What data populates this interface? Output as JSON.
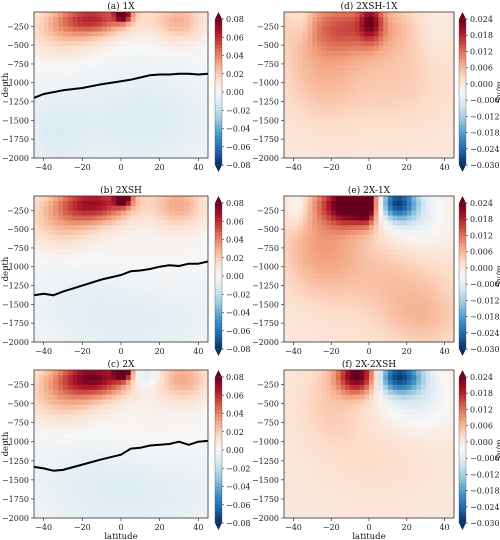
{
  "colors": {
    "cmap": [
      "#053061",
      "#2166ac",
      "#4393c3",
      "#92c5de",
      "#d1e5f0",
      "#f7f7f7",
      "#fddbc7",
      "#f4a582",
      "#d6604d",
      "#b2182b",
      "#67001f"
    ],
    "isoline": "#000000"
  },
  "chart_data": [
    {
      "type": "heatmap",
      "title": "(a) 1X",
      "xlabel": "",
      "ylabel": "depth",
      "xlim": [
        -45,
        45
      ],
      "ylim": [
        -2000,
        -60
      ],
      "xticks": [
        "−40",
        "−20",
        "0",
        "20",
        "40"
      ],
      "yticks": [
        "−250",
        "−500",
        "−750",
        "−1000",
        "−1250",
        "−1500",
        "−1750",
        "−2000"
      ],
      "colorbar": {
        "label": "",
        "range": [
          -0.08,
          0.08
        ],
        "ticks": [
          "0.08",
          "0.06",
          "0.04",
          "0.02",
          "0.00",
          "−0.02",
          "−0.04",
          "−0.06",
          "−0.08"
        ]
      },
      "isoline": {
        "x": [
          -45,
          -40,
          -30,
          -20,
          -10,
          0,
          5,
          10,
          15,
          20,
          25,
          30,
          35,
          40,
          45
        ],
        "y": [
          -1200,
          -1150,
          -1100,
          -1070,
          -1020,
          -980,
          -960,
          -930,
          -900,
          -890,
          -890,
          -880,
          -880,
          -890,
          -880
        ]
      }
    },
    {
      "type": "heatmap",
      "title": "(b) 2XSH",
      "xlabel": "",
      "ylabel": "depth",
      "xlim": [
        -45,
        45
      ],
      "ylim": [
        -2000,
        -60
      ],
      "xticks": [
        "−40",
        "−20",
        "0",
        "20",
        "40"
      ],
      "yticks": [
        "−250",
        "−500",
        "−750",
        "−1000",
        "−1250",
        "−1500",
        "−1750",
        "−2000"
      ],
      "colorbar": {
        "label": "",
        "range": [
          -0.08,
          0.08
        ],
        "ticks": [
          "0.08",
          "0.06",
          "0.04",
          "0.02",
          "0.00",
          "−0.02",
          "−0.04",
          "−0.06",
          "−0.08"
        ]
      },
      "isoline": {
        "x": [
          -45,
          -40,
          -35,
          -30,
          -20,
          -10,
          0,
          5,
          10,
          15,
          20,
          25,
          30,
          35,
          40,
          45
        ],
        "y": [
          -1380,
          -1360,
          -1380,
          -1330,
          -1250,
          -1170,
          -1110,
          -1060,
          -1050,
          -1030,
          -1000,
          -980,
          -990,
          -960,
          -960,
          -930
        ]
      }
    },
    {
      "type": "heatmap",
      "title": "(c) 2X",
      "xlabel": "latitude",
      "ylabel": "depth",
      "xlim": [
        -45,
        45
      ],
      "ylim": [
        -2000,
        -60
      ],
      "xticks": [
        "−40",
        "−20",
        "0",
        "20",
        "40"
      ],
      "yticks": [
        "−250",
        "−500",
        "−750",
        "−1000",
        "−1250",
        "−1500",
        "−1750",
        "−2000"
      ],
      "colorbar": {
        "label": "",
        "range": [
          -0.08,
          0.08
        ],
        "ticks": [
          "0.08",
          "0.06",
          "0.04",
          "0.02",
          "0.00",
          "−0.02",
          "−0.04",
          "−0.06",
          "−0.08"
        ]
      },
      "isoline": {
        "x": [
          -45,
          -40,
          -35,
          -30,
          -20,
          -10,
          0,
          5,
          10,
          15,
          20,
          25,
          30,
          35,
          40,
          45
        ],
        "y": [
          -1330,
          -1350,
          -1380,
          -1370,
          -1300,
          -1230,
          -1170,
          -1090,
          -1080,
          -1050,
          -1040,
          -1030,
          -1000,
          -1040,
          -1000,
          -990
        ]
      }
    },
    {
      "type": "heatmap",
      "title": "(d) 2XSH-1X",
      "xlabel": "",
      "ylabel": "",
      "xlim": [
        -45,
        45
      ],
      "ylim": [
        -2000,
        -60
      ],
      "xticks": [
        "−40",
        "−20",
        "0",
        "20",
        "40"
      ],
      "yticks": [
        "−250",
        "−500",
        "−750",
        "−1000",
        "−1250",
        "−1500",
        "−1750",
        "−2000"
      ],
      "colorbar": {
        "label": "Sv/m",
        "range": [
          -0.03,
          0.024
        ],
        "ticks": [
          "0.024",
          "0.018",
          "0.012",
          "0.006",
          "0.000",
          "−0.006",
          "−0.012",
          "−0.018",
          "−0.024",
          "−0.030"
        ]
      }
    },
    {
      "type": "heatmap",
      "title": "(e) 2X-1X",
      "xlabel": "",
      "ylabel": "",
      "xlim": [
        -45,
        45
      ],
      "ylim": [
        -2000,
        -60
      ],
      "xticks": [
        "−40",
        "−20",
        "0",
        "20",
        "40"
      ],
      "yticks": [
        "−250",
        "−500",
        "−750",
        "−1000",
        "−1250",
        "−1500",
        "−1750",
        "−2000"
      ],
      "colorbar": {
        "label": "Sv/m",
        "range": [
          -0.03,
          0.024
        ],
        "ticks": [
          "0.024",
          "0.018",
          "0.012",
          "0.006",
          "0.000",
          "−0.006",
          "−0.012",
          "−0.018",
          "−0.024",
          "−0.030"
        ]
      }
    },
    {
      "type": "heatmap",
      "title": "(f) 2X-2XSH",
      "xlabel": "latitude",
      "ylabel": "",
      "xlim": [
        -45,
        45
      ],
      "ylim": [
        -2000,
        -60
      ],
      "xticks": [
        "−40",
        "−20",
        "0",
        "20",
        "40"
      ],
      "yticks": [
        "−250",
        "−500",
        "−750",
        "−1000",
        "−1250",
        "−1500",
        "−1750",
        "−2000"
      ],
      "colorbar": {
        "label": "Sv/m",
        "range": [
          -0.03,
          0.024
        ],
        "ticks": [
          "0.024",
          "0.018",
          "0.012",
          "0.006",
          "0.000",
          "−0.006",
          "−0.012",
          "−0.018",
          "−0.024",
          "−0.030"
        ]
      }
    }
  ]
}
